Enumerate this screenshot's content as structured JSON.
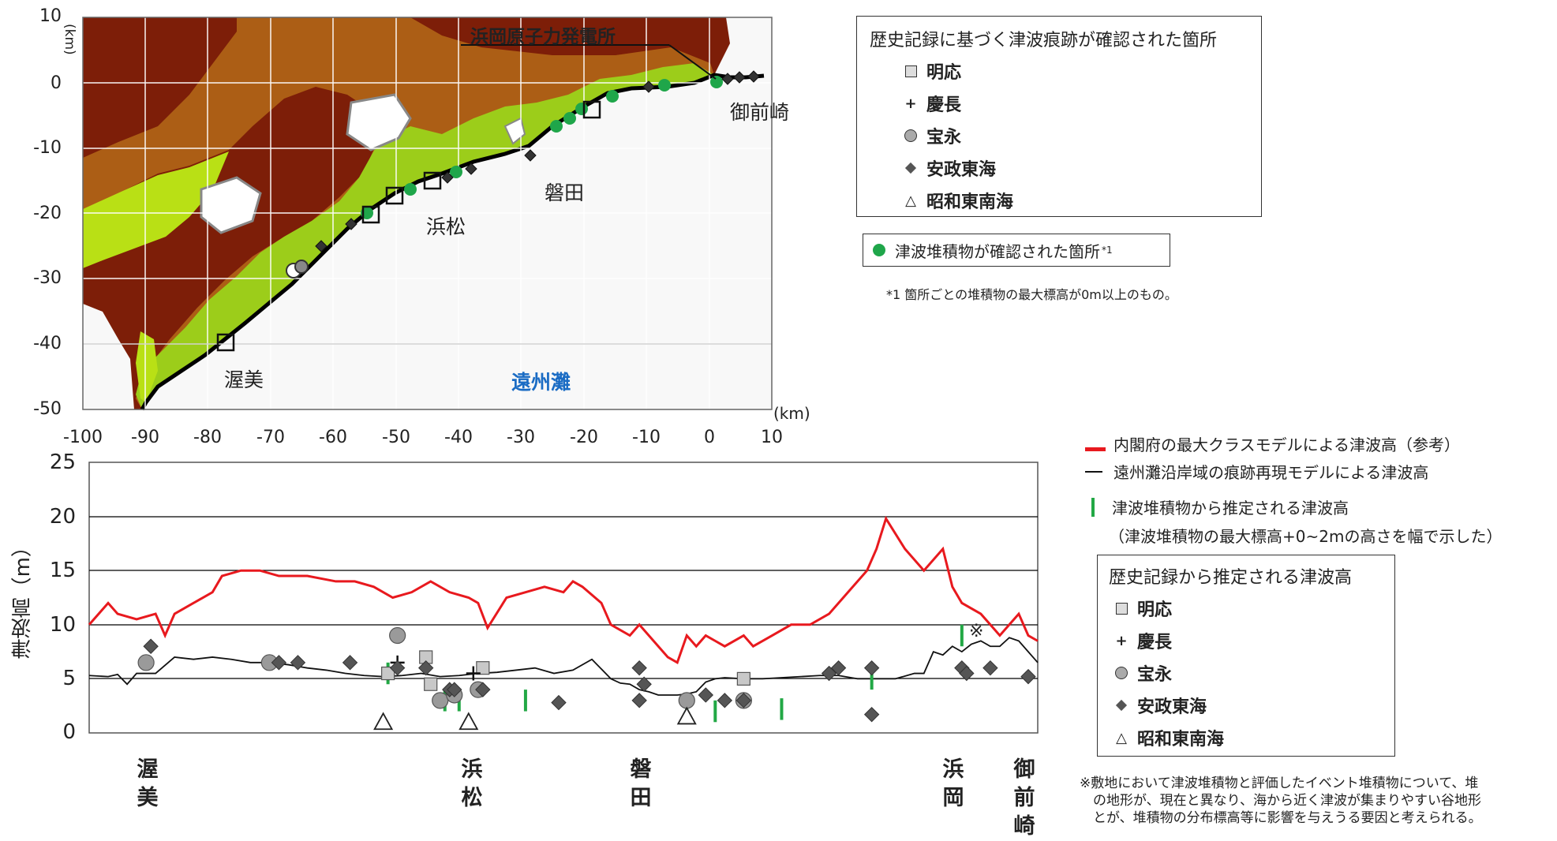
{
  "map": {
    "plant_label": "浜岡原子力発電所",
    "place_labels": [
      "御前崎",
      "磐田",
      "浜松",
      "渥美"
    ],
    "sea_label": "遠州灘",
    "x_unit": "(km)",
    "y_unit": "(km)",
    "x_ticks": [
      "-100",
      "-90",
      "-80",
      "-70",
      "-60",
      "-50",
      "-40",
      "-30",
      "-20",
      "-10",
      "0",
      "10"
    ],
    "y_ticks": [
      "10",
      "0",
      "-10",
      "-20",
      "-30",
      "-40",
      "-50"
    ]
  },
  "map_legend": {
    "title": "歴史記録に基づく津波痕跡が確認された箇所",
    "items": [
      {
        "symbol": "square-icon",
        "label": "明応"
      },
      {
        "symbol": "plus-icon",
        "label": "慶長"
      },
      {
        "symbol": "circle-icon",
        "label": "宝永"
      },
      {
        "symbol": "diamond-icon",
        "label": "安政東海"
      },
      {
        "symbol": "triangle-icon",
        "label": "昭和東南海"
      }
    ],
    "deposit_label": "津波堆積物が確認された箇所",
    "deposit_sup": "*1",
    "footnote": "*1 箇所ごとの堆積物の最大標高が0m以上のもの。"
  },
  "chart_legend": {
    "red_line": "内閣府の最大クラスモデルによる津波高（参考）",
    "black_line": "遠州灘沿岸域の痕跡再現モデルによる津波高",
    "green_bar": "津波堆積物から推定される津波高",
    "green_bar_note": "（津波堆積物の最大標高+0~2mの高さを幅で示した）",
    "box_title": "歴史記録から推定される津波高",
    "items": [
      {
        "symbol": "square-icon",
        "label": "明応"
      },
      {
        "symbol": "plus-icon",
        "label": "慶長"
      },
      {
        "symbol": "circle-icon",
        "label": "宝永"
      },
      {
        "symbol": "diamond-icon",
        "label": "安政東海"
      },
      {
        "symbol": "triangle-icon",
        "label": "昭和東南海"
      }
    ]
  },
  "remark": {
    "mark": "※",
    "lines": [
      "※敷地において津波堆積物と評価したイベント堆積物について、堆",
      "　の地形が、現在と異なり、海から近く津波が集まりやすい谷地形",
      "　とが、堆積物の分布標高等に影響を与えうる要因と考えられる。"
    ]
  },
  "chart_data": {
    "type": "line",
    "ylabel": "津波高（m）",
    "ylim": [
      0,
      25
    ],
    "y_ticks": [
      "0",
      "5",
      "10",
      "15",
      "20",
      "25"
    ],
    "x_labels": [
      "渥美",
      "浜松",
      "磐田",
      "浜岡",
      "御前崎"
    ],
    "colors": {
      "red": "#e8191e",
      "black": "#111111",
      "green": "#22a845",
      "marker_dark": "#555555",
      "marker_light": "#c8c8c8",
      "marker_mid": "#9a9a9a"
    },
    "series": [
      {
        "name": "内閣府の最大クラスモデルによる津波高（参考）",
        "x": [
          0,
          2,
          3,
          5,
          7,
          8,
          9,
          11,
          13,
          14,
          16,
          18,
          20,
          23,
          26,
          28,
          30,
          32,
          34,
          36,
          38,
          40,
          41,
          42,
          44,
          46,
          48,
          50,
          51,
          52,
          54,
          55,
          57,
          58,
          60,
          61,
          62,
          63,
          64,
          65,
          66,
          67,
          69,
          70,
          72,
          74,
          76,
          78,
          80,
          82,
          83,
          84,
          86,
          88,
          90,
          91,
          92,
          94,
          95,
          96,
          97,
          98,
          99,
          100
        ],
        "values": [
          10,
          12,
          11,
          10.5,
          11,
          9,
          11,
          12,
          13,
          14.5,
          15,
          15,
          14.5,
          14.5,
          14,
          14,
          13.5,
          12.5,
          13,
          14,
          13,
          12.5,
          12,
          9.7,
          12.5,
          13,
          13.5,
          13,
          14,
          13.5,
          12,
          10,
          9,
          10,
          8,
          7,
          6.5,
          9,
          8,
          9,
          8.5,
          8,
          9,
          8,
          9,
          10,
          10,
          11,
          13,
          15,
          17,
          19.8,
          17,
          15,
          17,
          13.5,
          12,
          11,
          10,
          9,
          10,
          11,
          9,
          8.5
        ]
      },
      {
        "name": "遠州灘沿岸域の痕跡再現モデルによる津波高",
        "x": [
          0,
          2,
          3,
          4,
          5,
          7,
          9,
          11,
          13,
          15,
          17,
          19,
          21,
          23,
          25,
          27,
          29,
          31,
          33,
          35,
          37,
          39,
          41,
          43,
          45,
          47,
          49,
          51,
          53,
          55,
          56,
          57,
          58,
          59,
          60,
          62,
          63,
          64,
          65,
          66,
          67,
          69,
          71,
          73,
          75,
          77,
          79,
          81,
          83,
          85,
          87,
          88,
          89,
          90,
          91,
          92,
          93,
          94,
          95,
          96,
          97,
          98,
          99,
          100
        ],
        "values": [
          5.3,
          5.2,
          5.4,
          4.5,
          5.5,
          5.5,
          7,
          6.8,
          7,
          6.8,
          6.5,
          6.5,
          6.3,
          6,
          5.8,
          5.5,
          5.3,
          5.2,
          5.3,
          5.5,
          5.2,
          5.3,
          5.5,
          5.6,
          5.8,
          6,
          5.5,
          5.8,
          6.8,
          5,
          4.6,
          4.5,
          4,
          3.8,
          3.5,
          3.5,
          3.6,
          3.8,
          4.7,
          5,
          5.1,
          5,
          5,
          5.1,
          5.2,
          5.3,
          5.3,
          5,
          5,
          5,
          5.5,
          5.5,
          7.5,
          7.2,
          8,
          7.5,
          8.2,
          8.5,
          8,
          8,
          8.8,
          8.5,
          7.5,
          6.5
        ]
      },
      {
        "name": "津波堆積物から推定される津波高",
        "bars": [
          [
            31.5,
            4.5,
            6.5
          ],
          [
            37.5,
            2,
            4
          ],
          [
            39,
            2,
            4
          ],
          [
            46,
            2,
            4
          ],
          [
            63,
            1,
            3
          ],
          [
            66,
            1,
            3
          ],
          [
            73,
            1.2,
            3.2
          ],
          [
            82.5,
            4,
            6
          ],
          [
            92,
            8,
            10
          ]
        ]
      },
      {
        "name": "明応",
        "points": [
          [
            31.5,
            5.5
          ],
          [
            35.5,
            7
          ],
          [
            36,
            4.5
          ],
          [
            41.5,
            6
          ],
          [
            69,
            5
          ]
        ]
      },
      {
        "name": "慶長",
        "points": [
          [
            32.5,
            6.5
          ],
          [
            40.5,
            5.5
          ]
        ]
      },
      {
        "name": "宝永",
        "points": [
          [
            6,
            6.5
          ],
          [
            19,
            6.5
          ],
          [
            32.5,
            9
          ],
          [
            37,
            3
          ],
          [
            38.5,
            3.5
          ],
          [
            41,
            4
          ],
          [
            63,
            3
          ],
          [
            69,
            3
          ]
        ]
      },
      {
        "name": "安政東海",
        "points": [
          [
            6.5,
            8
          ],
          [
            20,
            6.5
          ],
          [
            22,
            6.5
          ],
          [
            27.5,
            6.5
          ],
          [
            32.5,
            6
          ],
          [
            35.5,
            6
          ],
          [
            38,
            4
          ],
          [
            38.5,
            4
          ],
          [
            41.5,
            4
          ],
          [
            49.5,
            2.8
          ],
          [
            58,
            6
          ],
          [
            58,
            3
          ],
          [
            58.5,
            4.5
          ],
          [
            65,
            3.5
          ],
          [
            67,
            3
          ],
          [
            69,
            3
          ],
          [
            78,
            5.5
          ],
          [
            79,
            6
          ],
          [
            82.5,
            6
          ],
          [
            82.5,
            1.7
          ],
          [
            92,
            6
          ],
          [
            92.5,
            5.5
          ],
          [
            95,
            6
          ],
          [
            99,
            5.2
          ]
        ]
      },
      {
        "name": "昭和東南海",
        "points": [
          [
            31,
            1
          ],
          [
            40,
            1
          ],
          [
            63,
            1.5
          ]
        ]
      }
    ]
  }
}
